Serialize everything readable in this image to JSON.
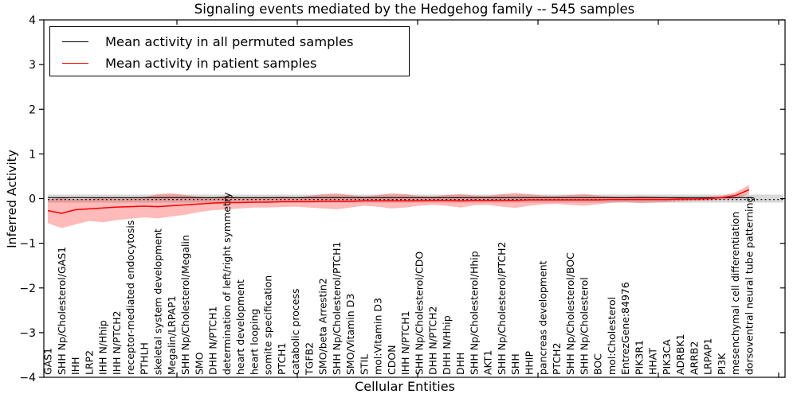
{
  "figure": {
    "title": "Signaling events mediated by the Hedgehog family -- 545 samples",
    "xlabel": "Cellular Entities",
    "ylabel": "Inferred Activity"
  },
  "legend": {
    "entries": [
      {
        "label": "Mean activity in all permuted samples",
        "color": "#000000"
      },
      {
        "label": "Mean activity in patient samples",
        "color": "#ff0000"
      }
    ]
  },
  "chart_data": {
    "type": "line",
    "title": "Signaling events mediated by the Hedgehog family -- 545 samples",
    "xlabel": "Cellular Entities",
    "ylabel": "Inferred Activity",
    "ylim": [
      -4,
      4
    ],
    "grid": false,
    "legend_position": "upper left",
    "yticks": [
      {
        "value": 4,
        "label": "4"
      },
      {
        "value": 3,
        "label": "3"
      },
      {
        "value": 2,
        "label": "2"
      },
      {
        "value": 1,
        "label": "1"
      },
      {
        "value": 0,
        "label": "0"
      },
      {
        "value": -1,
        "label": "−1"
      },
      {
        "value": -2,
        "label": "−2"
      },
      {
        "value": -3,
        "label": "−3"
      },
      {
        "value": -4,
        "label": "−4"
      }
    ],
    "categories": [
      "GAS1",
      "SHH Np/Cholesterol/GAS1",
      "IHH",
      "LRP2",
      "IHH N/Hhip",
      "IHH N/PTCH2",
      "receptor-mediated endocytosis",
      "PTHLH",
      "skeletal system development",
      "Megalin/LRPAP1",
      "SHH Np/Cholesterol/Megalin",
      "SMO",
      "DHH N/PTCH1",
      "determination of left/right symmetry",
      "heart development",
      "heart looping",
      "somite specification",
      "PTCH1",
      "catabolic process",
      "TGFB2",
      "SMO/beta Arrestin2",
      "SHH Np/Cholesterol/PTCH1",
      "SMO/Vitamin D3",
      "STIL",
      "mol:Vitamin D3",
      "CDON",
      "IHH N/PTCH1",
      "SHH Np/Cholesterol/CDO",
      "DHH N/PTCH2",
      "DHH N/Hhip",
      "DHH",
      "SHH Np/Cholesterol/Hhip",
      "AKT1",
      "SHH Np/Cholesterol/PTCH2",
      "SHH",
      "HHIP",
      "pancreas development",
      "PTCH2",
      "SHH Np/Cholesterol/BOC",
      "SHH Np/Cholesterol",
      "BOC",
      "mol:Cholesterol",
      "EntrezGene:84976",
      "PIK3R1",
      "HHAT",
      "PIK3CA",
      "ADRBK1",
      "ARRB2",
      "LRPAP1",
      "PI3K",
      "mesenchymal cell differentiation",
      "dorsoventral neural tube patterning"
    ],
    "series": [
      {
        "name": "Mean activity in all permuted samples",
        "color": "#000000",
        "values": [
          0,
          0,
          0,
          0,
          0,
          0,
          0,
          0,
          0,
          0,
          0,
          0,
          0,
          0,
          0,
          0,
          0,
          0,
          0,
          0,
          0,
          0,
          0,
          0,
          0,
          0,
          0,
          0,
          0,
          0,
          0,
          0,
          0,
          0,
          0,
          0,
          0,
          0,
          0,
          0,
          0,
          0,
          0,
          0,
          0,
          0,
          0,
          0,
          0,
          0,
          0,
          0
        ],
        "band": {
          "upper": 0.09,
          "lower": -0.09,
          "color": "rgba(0,0,0,0.15)"
        }
      },
      {
        "name": "Mean activity in patient samples",
        "color": "#ff0000",
        "band_color": "rgba(255,0,0,0.27)",
        "values": [
          -0.27,
          -0.33,
          -0.25,
          -0.23,
          -0.21,
          -0.19,
          -0.18,
          -0.17,
          -0.18,
          -0.16,
          -0.14,
          -0.12,
          -0.1,
          -0.09,
          -0.09,
          -0.08,
          -0.08,
          -0.07,
          -0.07,
          -0.07,
          -0.06,
          -0.06,
          -0.06,
          -0.05,
          -0.05,
          -0.05,
          -0.05,
          -0.05,
          -0.04,
          -0.04,
          -0.05,
          -0.04,
          -0.04,
          -0.04,
          -0.04,
          -0.03,
          -0.03,
          -0.03,
          -0.03,
          -0.03,
          -0.03,
          -0.02,
          -0.02,
          -0.02,
          -0.02,
          -0.02,
          -0.01,
          -0.01,
          0.0,
          0.02,
          0.07,
          0.2
        ],
        "band_upper": [
          -0.02,
          0.02,
          -0.02,
          0.0,
          0.02,
          0.0,
          0.01,
          0.03,
          0.1,
          0.12,
          0.08,
          0.04,
          0.03,
          0.06,
          0.03,
          0.02,
          0.03,
          0.05,
          0.03,
          0.06,
          0.1,
          0.12,
          0.08,
          0.05,
          0.08,
          0.12,
          0.1,
          0.06,
          0.05,
          0.08,
          0.1,
          0.07,
          0.06,
          0.1,
          0.13,
          0.1,
          0.07,
          0.06,
          0.08,
          0.1,
          0.07,
          0.05,
          0.04,
          0.06,
          0.05,
          0.04,
          0.04,
          0.03,
          0.04,
          0.06,
          0.14,
          0.3
        ],
        "band_lower": [
          -0.55,
          -0.66,
          -0.58,
          -0.5,
          -0.53,
          -0.48,
          -0.45,
          -0.42,
          -0.44,
          -0.4,
          -0.36,
          -0.3,
          -0.26,
          -0.24,
          -0.22,
          -0.2,
          -0.2,
          -0.19,
          -0.18,
          -0.2,
          -0.22,
          -0.24,
          -0.2,
          -0.16,
          -0.18,
          -0.22,
          -0.2,
          -0.16,
          -0.14,
          -0.16,
          -0.2,
          -0.15,
          -0.14,
          -0.18,
          -0.21,
          -0.16,
          -0.13,
          -0.12,
          -0.14,
          -0.16,
          -0.13,
          -0.09,
          -0.08,
          -0.1,
          -0.09,
          -0.08,
          -0.06,
          -0.05,
          -0.04,
          -0.02,
          0.0,
          0.1
        ]
      }
    ],
    "zero_line": {
      "style": "dotted",
      "color": "#000000"
    }
  }
}
